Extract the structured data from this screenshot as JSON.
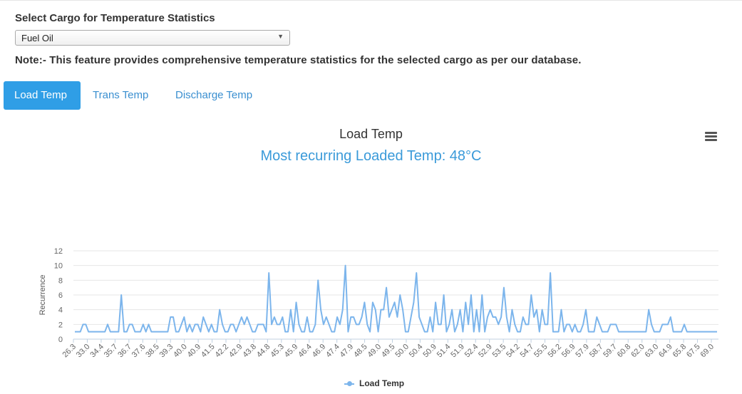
{
  "header": {
    "select_title": "Select Cargo for Temperature Statistics",
    "cargo_selected": "Fuel Oil",
    "note": "Note:- This feature provides comprehensive temperature statistics for the selected cargo as per our database."
  },
  "tabs": [
    {
      "label": "Load Temp",
      "active": true
    },
    {
      "label": "Trans Temp",
      "active": false
    },
    {
      "label": "Discharge Temp",
      "active": false
    }
  ],
  "chart": {
    "title": "Load Temp",
    "subtitle": "Most recurring Loaded Temp: 48°C",
    "menu_icon": "hamburger-menu-icon",
    "legend_label": "Load Temp"
  },
  "colors": {
    "series": "#7cb5ec",
    "active_tab": "#2f9ee6",
    "subtitle": "#3a9ad9"
  },
  "chart_data": {
    "type": "line",
    "title": "Load Temp",
    "subtitle": "Most recurring Loaded Temp: 48°C",
    "xlabel": "",
    "ylabel": "Recurrence",
    "ylim": [
      0,
      12
    ],
    "yticks": [
      0,
      2,
      4,
      6,
      8,
      10,
      12
    ],
    "grid": true,
    "legend": "bottom-center",
    "x_tick_labels": [
      "26.3",
      "33.0",
      "34.4",
      "35.7",
      "36.7",
      "37.6",
      "38.5",
      "39.3",
      "40.0",
      "40.9",
      "41.5",
      "42.2",
      "42.9",
      "43.8",
      "44.8",
      "45.3",
      "45.9",
      "46.4",
      "46.9",
      "47.4",
      "47.9",
      "48.5",
      "49.0",
      "49.5",
      "50.0",
      "50.4",
      "50.9",
      "51.4",
      "51.9",
      "52.4",
      "52.9",
      "53.5",
      "54.2",
      "54.7",
      "55.5",
      "56.2",
      "56.9",
      "57.9",
      "58.7",
      "59.7",
      "60.8",
      "62.0",
      "63.0",
      "64.9",
      "65.8",
      "67.5",
      "69.0"
    ],
    "series": [
      {
        "name": "Load Temp",
        "values": [
          1,
          1,
          1,
          2,
          2,
          1,
          1,
          1,
          1,
          1,
          1,
          1,
          2,
          1,
          1,
          1,
          1,
          6,
          1,
          1,
          2,
          2,
          1,
          1,
          1,
          2,
          1,
          2,
          1,
          1,
          1,
          1,
          1,
          1,
          1,
          3,
          3,
          1,
          1,
          2,
          3,
          1,
          2,
          1,
          2,
          2,
          1,
          3,
          2,
          1,
          2,
          1,
          1,
          4,
          2,
          1,
          1,
          2,
          2,
          1,
          2,
          3,
          2,
          3,
          2,
          1,
          1,
          2,
          2,
          2,
          1,
          9,
          2,
          3,
          2,
          2,
          3,
          1,
          1,
          4,
          1,
          5,
          2,
          1,
          1,
          3,
          1,
          1,
          2,
          8,
          4,
          2,
          3,
          2,
          1,
          1,
          3,
          2,
          4,
          10,
          1,
          3,
          3,
          2,
          2,
          3,
          5,
          2,
          1,
          5,
          4,
          1,
          4,
          4,
          7,
          3,
          4,
          5,
          3,
          6,
          4,
          1,
          1,
          3,
          5,
          9,
          3,
          2,
          1,
          1,
          3,
          1,
          5,
          2,
          2,
          6,
          1,
          2,
          4,
          1,
          2,
          4,
          1,
          5,
          2,
          6,
          1,
          4,
          1,
          6,
          1,
          3,
          4,
          3,
          3,
          2,
          3,
          7,
          3,
          1,
          4,
          2,
          1,
          1,
          3,
          2,
          2,
          6,
          3,
          4,
          1,
          4,
          2,
          2,
          9,
          1,
          1,
          1,
          4,
          1,
          2,
          2,
          1,
          2,
          1,
          1,
          2,
          4,
          1,
          1,
          1,
          3,
          2,
          1,
          1,
          1,
          2,
          2,
          2,
          1,
          1,
          1,
          1,
          1,
          1,
          1,
          1,
          1,
          1,
          1,
          4,
          2,
          1,
          1,
          1,
          2,
          2,
          2,
          3,
          1,
          1,
          1,
          1,
          2,
          1,
          1,
          1,
          1,
          1,
          1,
          1,
          1,
          1,
          1,
          1,
          1
        ]
      }
    ]
  }
}
